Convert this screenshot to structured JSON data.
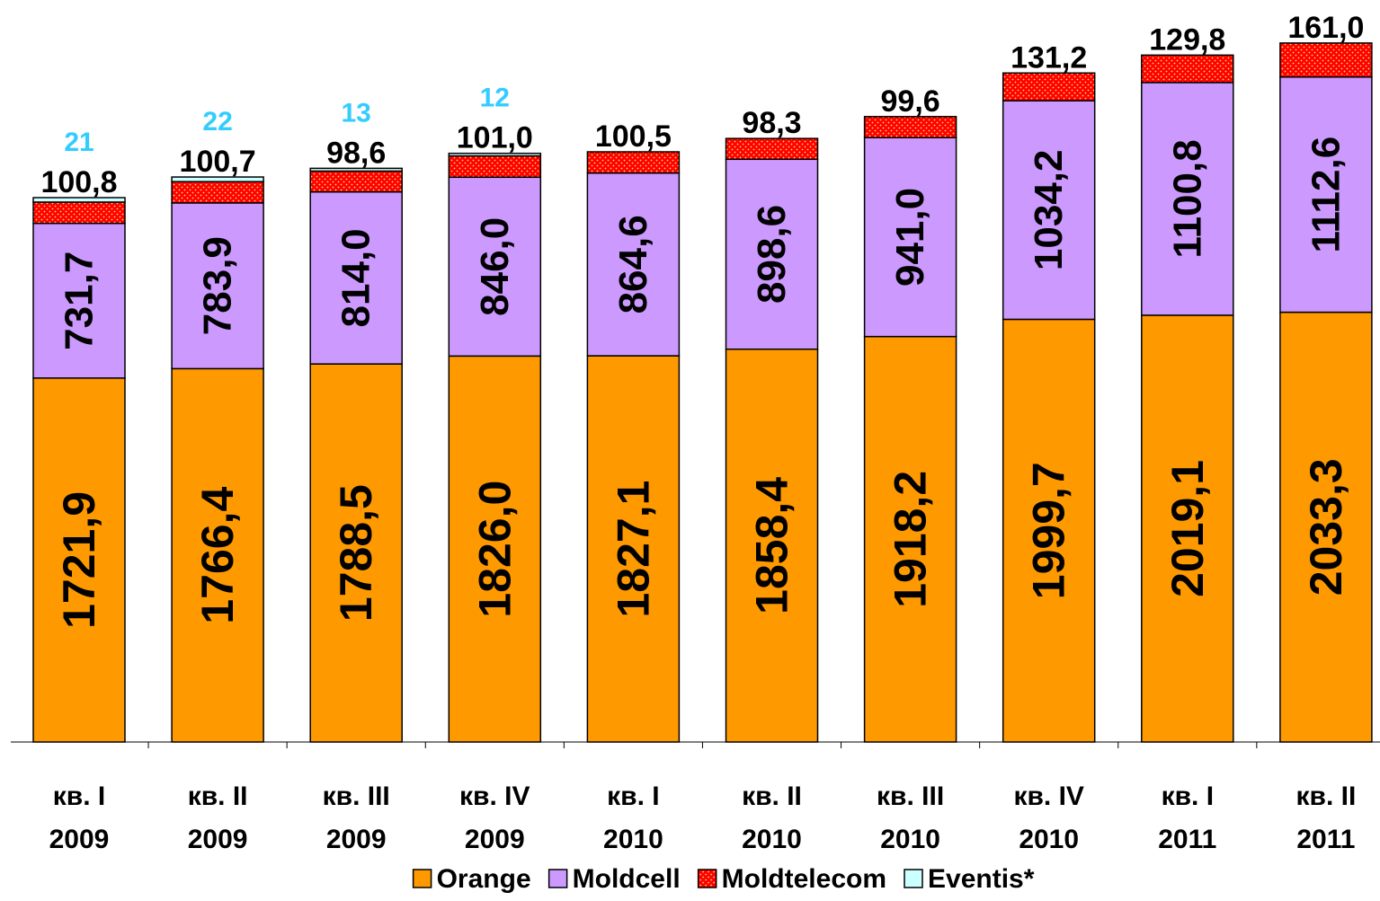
{
  "chart_data": {
    "type": "stacked-bar",
    "categories": [
      [
        "кв. I",
        "2009"
      ],
      [
        "кв. II",
        "2009"
      ],
      [
        "кв. III",
        "2009"
      ],
      [
        "кв. IV",
        "2009"
      ],
      [
        "кв. I",
        "2010"
      ],
      [
        "кв. II",
        "2010"
      ],
      [
        "кв. III",
        "2010"
      ],
      [
        "кв. IV",
        "2010"
      ],
      [
        "кв. I",
        "2011"
      ],
      [
        "кв. II",
        "2011"
      ]
    ],
    "series": [
      {
        "name": "Orange",
        "color": "#ff9900",
        "values": [
          1721.9,
          1766.4,
          1788.5,
          1826.0,
          1827.1,
          1858.4,
          1918.2,
          1999.7,
          2019.1,
          2033.3
        ],
        "value_labels": [
          "1721,9",
          "1766,4",
          "1788,5",
          "1826,0",
          "1827,1",
          "1858,4",
          "1918,2",
          "1999,7",
          "2019,1",
          "2033,3"
        ]
      },
      {
        "name": "Moldcell",
        "color": "#cc99ff",
        "values": [
          731.7,
          783.9,
          814.0,
          846.0,
          864.6,
          898.6,
          941.0,
          1034.2,
          1100.8,
          1112.6
        ],
        "value_labels": [
          "731,7",
          "783,9",
          "814,0",
          "846,0",
          "864,6",
          "898,6",
          "941,0",
          "1034,2",
          "1100,8",
          "1112,6"
        ]
      },
      {
        "name": "Moldtelecom",
        "color": "#ff0000",
        "values": [
          100.8,
          100.7,
          98.6,
          101.0,
          100.5,
          98.3,
          99.6,
          131.2,
          129.8,
          161.0
        ],
        "value_labels": [
          "100,8",
          "100,7",
          "98,6",
          "101,0",
          "100,5",
          "98,3",
          "99,6",
          "131,2",
          "129,8",
          "161,0"
        ]
      },
      {
        "name": "Eventis*",
        "color": "#ccffff",
        "values": [
          21,
          22,
          13,
          12,
          null,
          null,
          null,
          null,
          null,
          null
        ]
      }
    ],
    "legend": "bottom"
  }
}
